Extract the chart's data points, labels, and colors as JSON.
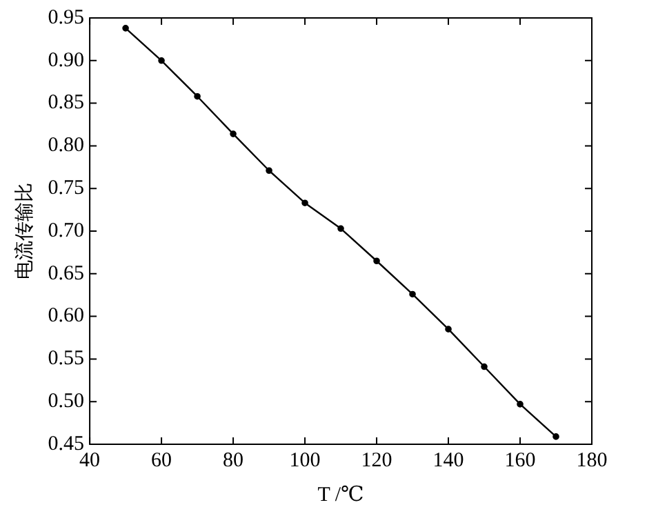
{
  "chart_data": {
    "type": "line",
    "xlabel": "T /℃",
    "ylabel": "电流传输比",
    "x": [
      50,
      60,
      70,
      80,
      90,
      100,
      110,
      120,
      130,
      140,
      150,
      160,
      170
    ],
    "series": [
      {
        "color": "#000000",
        "values": [
          0.938,
          0.9,
          0.858,
          0.814,
          0.771,
          0.733,
          0.703,
          0.665,
          0.626,
          0.585,
          0.541,
          0.497,
          0.459
        ]
      }
    ],
    "xlim": [
      40,
      180
    ],
    "xticks": [
      40,
      60,
      80,
      100,
      120,
      140,
      160,
      180
    ],
    "ylim": [
      0.45,
      0.95
    ],
    "yticks": [
      {
        "value": 0.45,
        "label": "0.45"
      },
      {
        "value": 0.5,
        "label": "0.50"
      },
      {
        "value": 0.55,
        "label": "0.55"
      },
      {
        "value": 0.6,
        "label": "0.60"
      },
      {
        "value": 0.65,
        "label": "0.65"
      },
      {
        "value": 0.7,
        "label": "0.70"
      },
      {
        "value": 0.75,
        "label": "0.75"
      },
      {
        "value": 0.8,
        "label": "0.80"
      },
      {
        "value": 0.85,
        "label": "0.85"
      },
      {
        "value": 0.9,
        "label": "0.90"
      },
      {
        "value": 0.95,
        "label": "0.95"
      }
    ],
    "grid": false,
    "legend": false,
    "marker": "circle",
    "line_style": "solid"
  }
}
